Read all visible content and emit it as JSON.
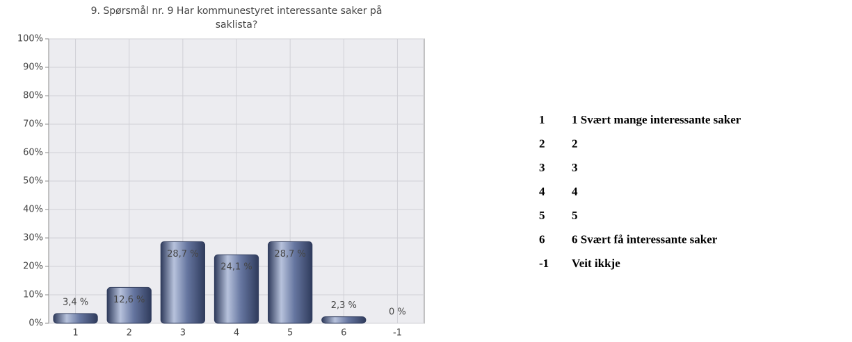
{
  "chart_data": {
    "type": "bar",
    "title": "9. Spørsmål nr. 9 Har kommunestyret interessante saker på saklista?",
    "categories": [
      "1",
      "2",
      "3",
      "4",
      "5",
      "6",
      "-1"
    ],
    "values": [
      3.4,
      12.6,
      28.7,
      24.1,
      28.7,
      2.3,
      0
    ],
    "value_labels": [
      "3,4 %",
      "12,6 %",
      "28,7 %",
      "24,1 %",
      "28,7 %",
      "2,3 %",
      "0 %"
    ],
    "color": "#5a6a90",
    "ylim": [
      0,
      100
    ],
    "yticks": [
      {
        "value": 0,
        "label": "0%"
      },
      {
        "value": 10,
        "label": "10%"
      },
      {
        "value": 20,
        "label": "20%"
      },
      {
        "value": 30,
        "label": "30%"
      },
      {
        "value": 40,
        "label": "40%"
      },
      {
        "value": 50,
        "label": "50%"
      },
      {
        "value": 60,
        "label": "60%"
      },
      {
        "value": 70,
        "label": "70%"
      },
      {
        "value": 80,
        "label": "80%"
      },
      {
        "value": 90,
        "label": "90%"
      },
      {
        "value": 100,
        "label": "100%"
      }
    ],
    "grid": true,
    "key": [
      {
        "code": "1",
        "label": "1 Svært mange interessante saker"
      },
      {
        "code": "2",
        "label": "2"
      },
      {
        "code": "3",
        "label": "3"
      },
      {
        "code": "4",
        "label": "4"
      },
      {
        "code": "5",
        "label": "5"
      },
      {
        "code": "6",
        "label": "6 Svært få interessante saker"
      },
      {
        "code": "-1",
        "label": "Veit ikkje"
      }
    ]
  }
}
